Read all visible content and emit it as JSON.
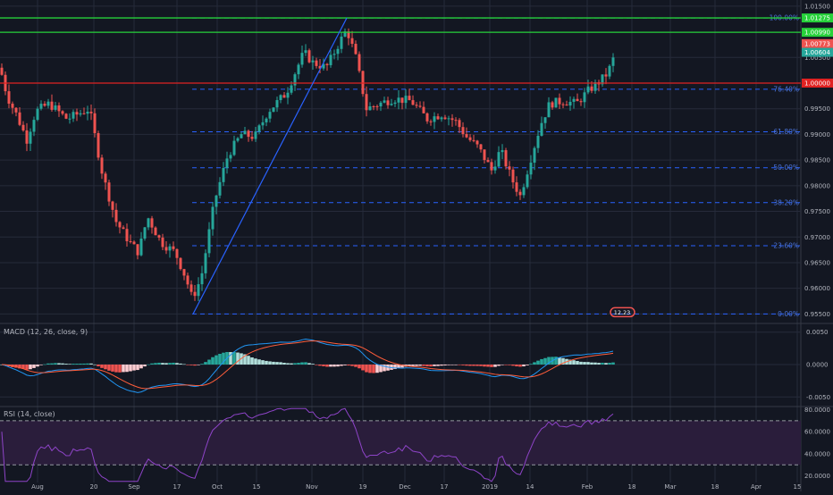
{
  "colors": {
    "bg": "#131722",
    "grid": "#262b3a",
    "up": "#26a69a",
    "down": "#ef5350",
    "fib": "#2962ff",
    "green_line": "#26d13a",
    "red_line": "#e02222",
    "macd_line": "#2196f3",
    "signal_line": "#ff5d3a",
    "rsi": "#8e44c8",
    "rsi_fill": "#2a1d3b",
    "axis_text": "#b2b5be"
  },
  "panels": {
    "macd_title": "MACD (12, 26, close, 9)",
    "rsi_title": "RSI (14, close)"
  },
  "chart_data": [
    {
      "type": "candlestick",
      "title": "",
      "x_ticks": [
        "Aug",
        "20",
        "Sep",
        "17",
        "Oct",
        "15",
        "Nov",
        "19",
        "Dec",
        "17",
        "2019",
        "14",
        "Feb",
        "18",
        "Mar",
        "18",
        "Apr",
        "15"
      ],
      "y_ticks": [
        "1.01500",
        "1.00500",
        "1.00000",
        "0.99500",
        "0.99000",
        "0.98500",
        "0.98000",
        "0.97500",
        "0.97000",
        "0.96500",
        "0.96000",
        "0.95500"
      ],
      "ylim": [
        0.9535,
        1.0155
      ],
      "fib_levels": [
        {
          "label": "0.00%",
          "value": 0.955
        },
        {
          "label": "23.60%",
          "value": 0.9683
        },
        {
          "label": "38.20%",
          "value": 0.9767
        },
        {
          "label": "50.00%",
          "value": 0.9835
        },
        {
          "label": "61.80%",
          "value": 0.9905
        },
        {
          "label": "76.40%",
          "value": 0.9988
        },
        {
          "label": "100.00%",
          "value": 1.0127
        }
      ],
      "horizontal_lines": [
        {
          "value": 1.0127,
          "color": "green",
          "price_label": "1.01275"
        },
        {
          "value": 1.0099,
          "color": "green",
          "price_label": "1.00990"
        },
        {
          "value": 1.0,
          "color": "red",
          "price_label": "1.00000"
        }
      ],
      "price_badges": [
        {
          "value": 1.0077,
          "label": "1.00773",
          "kind": "down"
        },
        {
          "value": 1.006,
          "label": "1.00604",
          "kind": "up"
        }
      ],
      "trend_line": {
        "from": {
          "x": "2018-09-23",
          "y": 0.955
        },
        "to": {
          "x": "2018-11-08",
          "y": 1.0127
        }
      },
      "lowest_badge": "12.23",
      "series": [
        {
          "values": []
        }
      ]
    },
    {
      "type": "macd",
      "title": "MACD (12, 26, close, 9)",
      "y_ticks": [
        "0.0050",
        "0.0000",
        "-0.0050"
      ],
      "ylim": [
        -0.0062,
        0.0062
      ]
    },
    {
      "type": "rsi",
      "title": "RSI (14, close)",
      "y_ticks": [
        "80.0000",
        "60.0000",
        "40.0000",
        "20.0000"
      ],
      "ylim": [
        14,
        82
      ],
      "bands": [
        70,
        30
      ]
    }
  ]
}
